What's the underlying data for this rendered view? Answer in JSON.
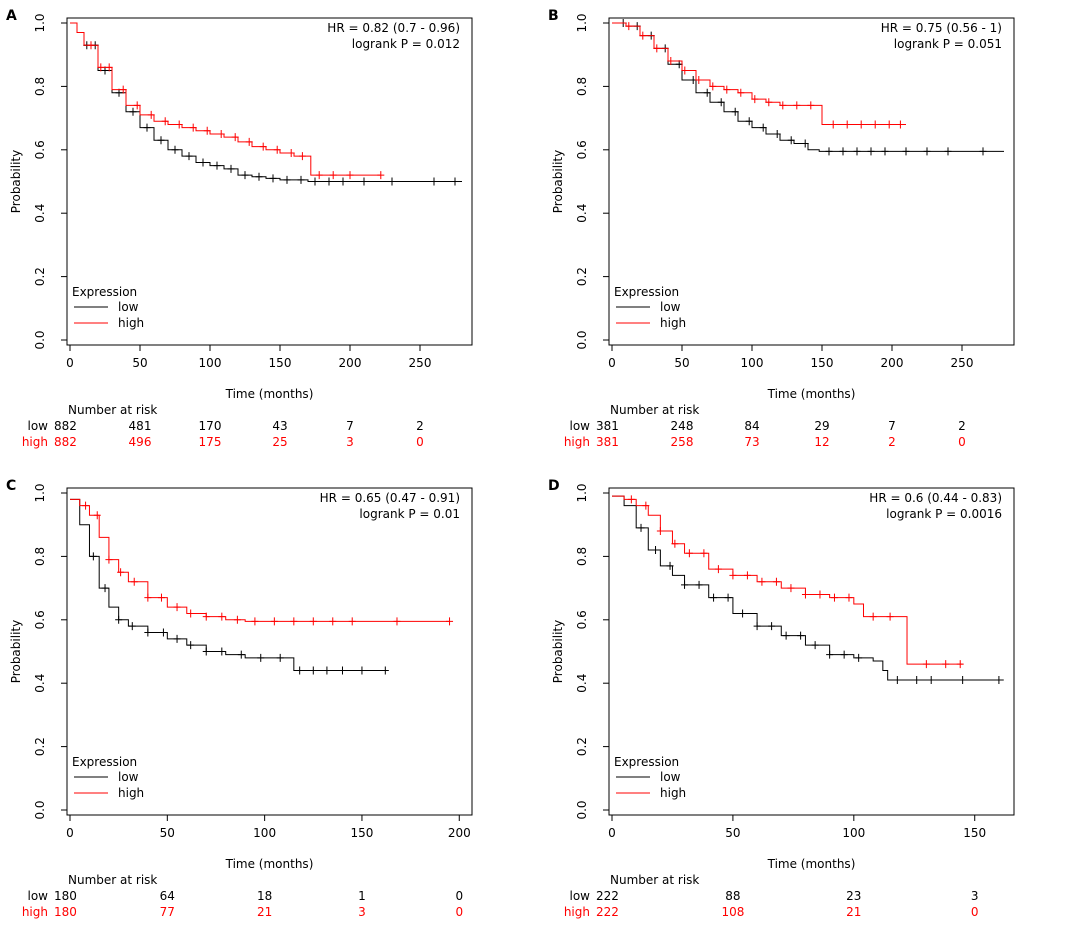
{
  "colors": {
    "low": "#000000",
    "high": "#ff0000"
  },
  "chart_data": [
    {
      "panel": "A",
      "type": "line",
      "hr": "HR = 0.82 (0.7 - 0.96)",
      "logrank": "logrank P = 0.012",
      "xlabel": "Time (months)",
      "ylabel": "Probability",
      "xlim": [
        0,
        285
      ],
      "ylim": [
        0,
        1
      ],
      "xticks": [
        0,
        50,
        100,
        150,
        200,
        250
      ],
      "yticks": [
        0.0,
        0.2,
        0.4,
        0.6,
        0.8,
        1.0
      ],
      "legend_title": "Expression",
      "legend": [
        "low",
        "high"
      ],
      "series": [
        {
          "name": "low",
          "x": [
            0,
            5,
            10,
            20,
            30,
            40,
            50,
            60,
            70,
            80,
            90,
            100,
            110,
            120,
            130,
            140,
            150,
            160,
            170,
            200,
            240,
            280
          ],
          "y": [
            1.0,
            0.97,
            0.93,
            0.85,
            0.78,
            0.72,
            0.67,
            0.63,
            0.6,
            0.58,
            0.56,
            0.55,
            0.54,
            0.52,
            0.515,
            0.51,
            0.505,
            0.505,
            0.5,
            0.5,
            0.5,
            0.5
          ],
          "censor_x": [
            12,
            18,
            25,
            35,
            45,
            55,
            65,
            75,
            85,
            95,
            105,
            115,
            125,
            135,
            145,
            155,
            165,
            175,
            185,
            195,
            210,
            230,
            260,
            275
          ]
        },
        {
          "name": "high",
          "x": [
            0,
            5,
            10,
            20,
            30,
            40,
            50,
            60,
            70,
            80,
            90,
            100,
            110,
            120,
            130,
            140,
            150,
            160,
            170,
            172,
            222
          ],
          "y": [
            1.0,
            0.97,
            0.93,
            0.86,
            0.79,
            0.74,
            0.71,
            0.69,
            0.68,
            0.67,
            0.66,
            0.65,
            0.64,
            0.625,
            0.61,
            0.6,
            0.59,
            0.58,
            0.58,
            0.52,
            0.52
          ],
          "censor_x": [
            15,
            22,
            28,
            38,
            48,
            58,
            68,
            78,
            88,
            98,
            108,
            118,
            128,
            138,
            148,
            158,
            166,
            178,
            188,
            200,
            222
          ]
        }
      ],
      "risk_header": "Number at risk",
      "risk_rows": [
        {
          "name": "low",
          "values": [
            "882",
            "481",
            "170",
            "43",
            "7",
            "2"
          ]
        },
        {
          "name": "high",
          "values": [
            "882",
            "496",
            "175",
            "25",
            "3",
            "0"
          ]
        }
      ]
    },
    {
      "panel": "B",
      "type": "line",
      "hr": "HR = 0.75 (0.56 - 1)",
      "logrank": "logrank P = 0.051",
      "xlabel": "Time (months)",
      "ylabel": "Probability",
      "xlim": [
        0,
        285
      ],
      "ylim": [
        0,
        1
      ],
      "xticks": [
        0,
        50,
        100,
        150,
        200,
        250
      ],
      "yticks": [
        0.0,
        0.2,
        0.4,
        0.6,
        0.8,
        1.0
      ],
      "legend_title": "Expression",
      "legend": [
        "low",
        "high"
      ],
      "series": [
        {
          "name": "low",
          "x": [
            0,
            10,
            20,
            30,
            40,
            50,
            60,
            70,
            80,
            90,
            100,
            110,
            120,
            130,
            140,
            148,
            200,
            280
          ],
          "y": [
            1.0,
            0.99,
            0.96,
            0.92,
            0.87,
            0.82,
            0.78,
            0.75,
            0.72,
            0.69,
            0.67,
            0.65,
            0.63,
            0.62,
            0.6,
            0.595,
            0.595,
            0.595
          ],
          "censor_x": [
            8,
            18,
            28,
            38,
            48,
            58,
            68,
            78,
            88,
            98,
            108,
            118,
            128,
            138,
            155,
            165,
            175,
            185,
            195,
            210,
            225,
            240,
            265
          ]
        },
        {
          "name": "high",
          "x": [
            0,
            10,
            20,
            30,
            40,
            50,
            60,
            70,
            80,
            90,
            100,
            110,
            120,
            130,
            140,
            148,
            150,
            210
          ],
          "y": [
            1.0,
            0.99,
            0.96,
            0.92,
            0.88,
            0.85,
            0.82,
            0.8,
            0.79,
            0.78,
            0.76,
            0.75,
            0.74,
            0.74,
            0.74,
            0.74,
            0.68,
            0.68
          ],
          "censor_x": [
            12,
            22,
            32,
            42,
            52,
            62,
            72,
            82,
            92,
            102,
            112,
            122,
            132,
            142,
            158,
            168,
            178,
            188,
            198,
            206
          ]
        }
      ],
      "risk_header": "Number at risk",
      "risk_rows": [
        {
          "name": "low",
          "values": [
            "381",
            "248",
            "84",
            "29",
            "7",
            "2"
          ]
        },
        {
          "name": "high",
          "values": [
            "381",
            "258",
            "73",
            "12",
            "2",
            "0"
          ]
        }
      ]
    },
    {
      "panel": "C",
      "type": "line",
      "hr": "HR = 0.65 (0.47 - 0.91)",
      "logrank": "logrank P = 0.01",
      "xlabel": "Time (months)",
      "ylabel": "Probability",
      "xlim": [
        0,
        205
      ],
      "ylim": [
        0,
        1
      ],
      "xticks": [
        0,
        50,
        100,
        150,
        200
      ],
      "yticks": [
        0.0,
        0.2,
        0.4,
        0.6,
        0.8,
        1.0
      ],
      "legend_title": "Expression",
      "legend": [
        "low",
        "high"
      ],
      "series": [
        {
          "name": "low",
          "x": [
            0,
            5,
            10,
            15,
            20,
            25,
            30,
            40,
            50,
            60,
            70,
            80,
            90,
            100,
            110,
            115,
            130,
            162
          ],
          "y": [
            0.98,
            0.9,
            0.8,
            0.7,
            0.64,
            0.6,
            0.58,
            0.56,
            0.54,
            0.52,
            0.5,
            0.49,
            0.48,
            0.48,
            0.48,
            0.44,
            0.44,
            0.44
          ],
          "censor_x": [
            12,
            18,
            25,
            32,
            40,
            48,
            55,
            62,
            70,
            78,
            88,
            98,
            108,
            118,
            125,
            132,
            140,
            150,
            162
          ]
        },
        {
          "name": "high",
          "x": [
            0,
            5,
            10,
            15,
            20,
            25,
            30,
            40,
            50,
            60,
            70,
            80,
            90,
            100,
            195
          ],
          "y": [
            0.98,
            0.96,
            0.93,
            0.86,
            0.79,
            0.75,
            0.72,
            0.67,
            0.64,
            0.62,
            0.61,
            0.6,
            0.595,
            0.595,
            0.595
          ],
          "censor_x": [
            8,
            14,
            20,
            26,
            33,
            40,
            47,
            55,
            62,
            70,
            78,
            86,
            95,
            105,
            115,
            125,
            135,
            145,
            168,
            195
          ]
        }
      ],
      "risk_header": "Number at risk",
      "risk_rows": [
        {
          "name": "low",
          "values": [
            "180",
            "64",
            "18",
            "1",
            "0"
          ]
        },
        {
          "name": "high",
          "values": [
            "180",
            "77",
            "21",
            "3",
            "0"
          ]
        }
      ]
    },
    {
      "panel": "D",
      "type": "line",
      "hr": "HR = 0.6 (0.44 - 0.83)",
      "logrank": "logrank P = 0.0016",
      "xlabel": "Time (months)",
      "ylabel": "Probability",
      "xlim": [
        0,
        165
      ],
      "ylim": [
        0,
        1
      ],
      "xticks": [
        0,
        50,
        100,
        150
      ],
      "yticks": [
        0.0,
        0.2,
        0.4,
        0.6,
        0.8,
        1.0
      ],
      "legend_title": "Expression",
      "legend": [
        "low",
        "high"
      ],
      "series": [
        {
          "name": "low",
          "x": [
            0,
            5,
            10,
            15,
            20,
            25,
            30,
            40,
            50,
            60,
            70,
            80,
            90,
            100,
            108,
            112,
            114,
            130,
            162
          ],
          "y": [
            0.99,
            0.96,
            0.89,
            0.82,
            0.77,
            0.74,
            0.71,
            0.67,
            0.62,
            0.58,
            0.55,
            0.52,
            0.49,
            0.48,
            0.47,
            0.44,
            0.41,
            0.41,
            0.41
          ],
          "censor_x": [
            12,
            18,
            24,
            30,
            36,
            42,
            48,
            54,
            60,
            66,
            72,
            78,
            84,
            90,
            96,
            102,
            118,
            126,
            132,
            145,
            160
          ]
        },
        {
          "name": "high",
          "x": [
            0,
            5,
            10,
            15,
            20,
            25,
            30,
            40,
            50,
            60,
            70,
            80,
            90,
            100,
            104,
            120,
            122,
            145
          ],
          "y": [
            0.99,
            0.98,
            0.96,
            0.93,
            0.88,
            0.84,
            0.81,
            0.76,
            0.74,
            0.72,
            0.7,
            0.68,
            0.67,
            0.65,
            0.61,
            0.61,
            0.46,
            0.46
          ],
          "censor_x": [
            8,
            14,
            20,
            26,
            32,
            38,
            44,
            50,
            56,
            62,
            68,
            74,
            80,
            86,
            92,
            98,
            108,
            115,
            130,
            138,
            144
          ]
        }
      ],
      "risk_header": "Number at risk",
      "risk_rows": [
        {
          "name": "low",
          "values": [
            "222",
            "88",
            "23",
            "3"
          ]
        },
        {
          "name": "high",
          "values": [
            "222",
            "108",
            "21",
            "0"
          ]
        }
      ]
    }
  ]
}
